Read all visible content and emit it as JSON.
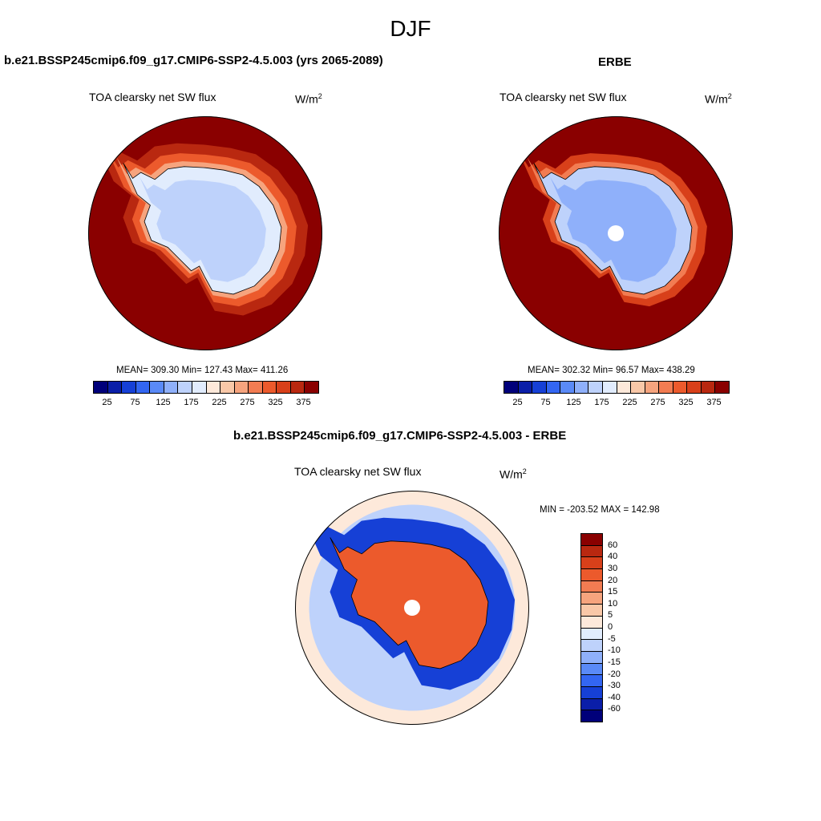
{
  "figure": {
    "season": "DJF",
    "diff_title": "b.e21.BSSP245cmip6.f09_g17.CMIP6-SSP2-4.5.003 - ERBE"
  },
  "chart_data": [
    {
      "type": "heatmap",
      "projection": "south-polar-stereographic",
      "title": "b.e21.BSSP245cmip6.f09_g17.CMIP6-SSP2-4.5.003 (yrs 2065-2089)",
      "variable": "TOA clearsky net SW flux",
      "units_base": "W/m",
      "units_exp": "2",
      "stats_text": "MEAN= 309.30  Min= 127.43  Max= 411.26",
      "mean": 309.3,
      "min": 127.43,
      "max": 411.26,
      "levels": [
        "25",
        "75",
        "125",
        "175",
        "225",
        "275",
        "325",
        "375"
      ],
      "colors": [
        "#00007a",
        "#0a1ea8",
        "#1640d6",
        "#3366f2",
        "#5a8af7",
        "#8fb0fa",
        "#bed2fb",
        "#e1ecfd",
        "#fde9da",
        "#f9c8a8",
        "#f6a47e",
        "#f27c52",
        "#ec5a2c",
        "#d8401a",
        "#b92810",
        "#8a0000"
      ],
      "zones": [
        {
          "region": "ocean-outer",
          "value": 390
        },
        {
          "region": "ocean-mid",
          "value": 330
        },
        {
          "region": "ocean-inner",
          "value": 290
        },
        {
          "region": "sea-ice-edge",
          "value": 240
        },
        {
          "region": "antarctic-coast",
          "value": 160
        },
        {
          "region": "antarctic-plateau",
          "value": 140
        }
      ]
    },
    {
      "type": "heatmap",
      "projection": "south-polar-stereographic",
      "title": "ERBE",
      "variable": "TOA clearsky net SW flux",
      "units_base": "W/m",
      "units_exp": "2",
      "stats_text": "MEAN= 302.32  Min=  96.57  Max= 438.29",
      "mean": 302.32,
      "min": 96.57,
      "max": 438.29,
      "levels": [
        "25",
        "75",
        "125",
        "175",
        "225",
        "275",
        "325",
        "375"
      ],
      "colors": [
        "#00007a",
        "#0a1ea8",
        "#1640d6",
        "#3366f2",
        "#5a8af7",
        "#8fb0fa",
        "#bed2fb",
        "#e1ecfd",
        "#fde9da",
        "#f9c8a8",
        "#f6a47e",
        "#f27c52",
        "#ec5a2c",
        "#d8401a",
        "#b92810",
        "#8a0000"
      ],
      "zones": [
        {
          "region": "ocean-outer",
          "value": 400
        },
        {
          "region": "ocean-mid",
          "value": 360
        },
        {
          "region": "ocean-inner",
          "value": 320
        },
        {
          "region": "sea-ice-edge",
          "value": 250
        },
        {
          "region": "antarctic-coast",
          "value": 140
        },
        {
          "region": "antarctic-plateau",
          "value": 110
        }
      ]
    },
    {
      "type": "heatmap",
      "projection": "south-polar-stereographic",
      "title": "b.e21.BSSP245cmip6.f09_g17.CMIP6-SSP2-4.5.003 - ERBE",
      "variable": "TOA clearsky net SW flux",
      "units_base": "W/m",
      "units_exp": "2",
      "stats_text": "MIN = -203.52 MAX = 142.98",
      "min": -203.52,
      "max": 142.98,
      "levels": [
        "60",
        "40",
        "30",
        "20",
        "15",
        "10",
        "5",
        "0",
        "-5",
        "-10",
        "-15",
        "-20",
        "-30",
        "-40",
        "-60"
      ],
      "colors": [
        "#8a0000",
        "#b92810",
        "#d8401a",
        "#ec5a2c",
        "#f27c52",
        "#f6a47e",
        "#f9c8a8",
        "#fde9da",
        "#e1ecfd",
        "#bed2fb",
        "#8fb0fa",
        "#5a8af7",
        "#3366f2",
        "#1640d6",
        "#0a1ea8",
        "#00007a"
      ],
      "zones": [
        {
          "region": "ocean-outer",
          "value": 3
        },
        {
          "region": "ocean-mid",
          "value": -8
        },
        {
          "region": "sea-ice-band",
          "value": -35
        },
        {
          "region": "antarctic-continent",
          "value": 25
        }
      ]
    }
  ]
}
